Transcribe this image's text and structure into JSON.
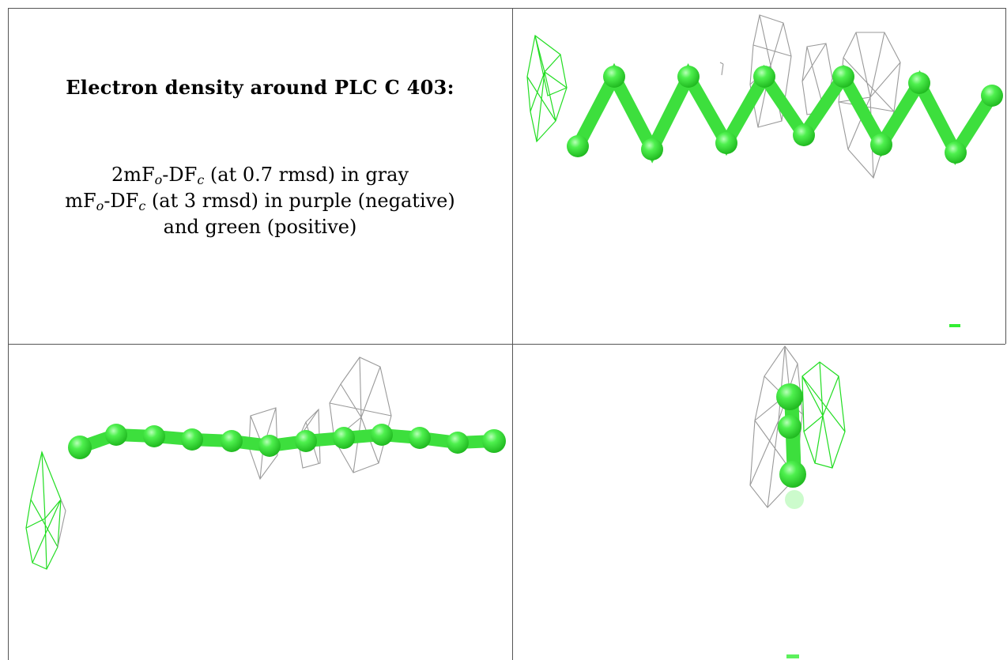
{
  "caption": {
    "title": "Electron density around PLC C 403:",
    "line1": {
      "pre": "2mF",
      "sub1": "o",
      "mid": "-DF",
      "sub2": "c",
      "post": " (at 0.7 rmsd) in gray"
    },
    "line2": {
      "pre": "mF",
      "sub1": "o",
      "mid": "-DF",
      "sub2": "c",
      "post": " (at 3 rmsd) in purple (negative)"
    },
    "line3": "and green (positive)"
  },
  "colors": {
    "carbon": "#33ee33",
    "bond": "#3ddf3d",
    "density_gray": "#9a9a9a",
    "density_green": "#22dd22",
    "grid_line": "#555555"
  }
}
